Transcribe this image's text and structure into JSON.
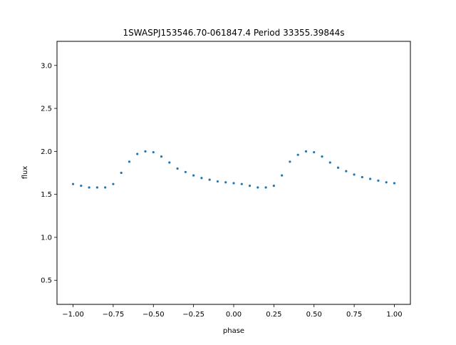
{
  "chart_data": {
    "type": "scatter",
    "title": "1SWASPJ153546.70-061847.4 Period 33355.39844s",
    "xlabel": "phase",
    "ylabel": "flux",
    "xlim": [
      -1.1,
      1.1
    ],
    "ylim": [
      0.22,
      3.28
    ],
    "xticks": [
      -1.0,
      -0.75,
      -0.5,
      -0.25,
      0.0,
      0.25,
      0.5,
      0.75,
      1.0
    ],
    "xtick_labels": [
      "−1.00",
      "−0.75",
      "−0.50",
      "−0.25",
      "0.00",
      "0.25",
      "0.50",
      "0.75",
      "1.00"
    ],
    "yticks": [
      0.5,
      1.0,
      1.5,
      2.0,
      2.5,
      3.0
    ],
    "ytick_labels": [
      "0.5",
      "1.0",
      "1.5",
      "2.0",
      "2.5",
      "3.0"
    ],
    "grid": false,
    "marker_color": "#1f77b4",
    "series": [
      {
        "x": [
          -1.0,
          -0.95,
          -0.9,
          -0.85,
          -0.8,
          -0.75,
          -0.7,
          -0.65,
          -0.6,
          -0.55,
          -0.5,
          -0.45,
          -0.4,
          -0.35,
          -0.3,
          -0.25,
          -0.2,
          -0.15,
          -0.1,
          -0.05,
          0.0,
          0.05,
          0.1,
          0.15,
          0.2,
          0.25,
          0.3,
          0.35,
          0.4,
          0.45,
          0.5,
          0.55,
          0.6,
          0.65,
          0.7,
          0.75,
          0.8,
          0.85,
          0.9,
          0.95,
          1.0
        ],
        "y": [
          1.62,
          1.6,
          1.58,
          1.58,
          1.58,
          1.62,
          1.75,
          1.88,
          1.97,
          2.0,
          1.99,
          1.94,
          1.87,
          1.8,
          1.76,
          1.72,
          1.69,
          1.67,
          1.65,
          1.64,
          1.63,
          1.62,
          1.6,
          1.58,
          1.58,
          1.6,
          1.72,
          1.88,
          1.96,
          2.0,
          1.99,
          1.94,
          1.87,
          1.81,
          1.77,
          1.73,
          1.7,
          1.68,
          1.66,
          1.64,
          1.63
        ]
      }
    ]
  }
}
